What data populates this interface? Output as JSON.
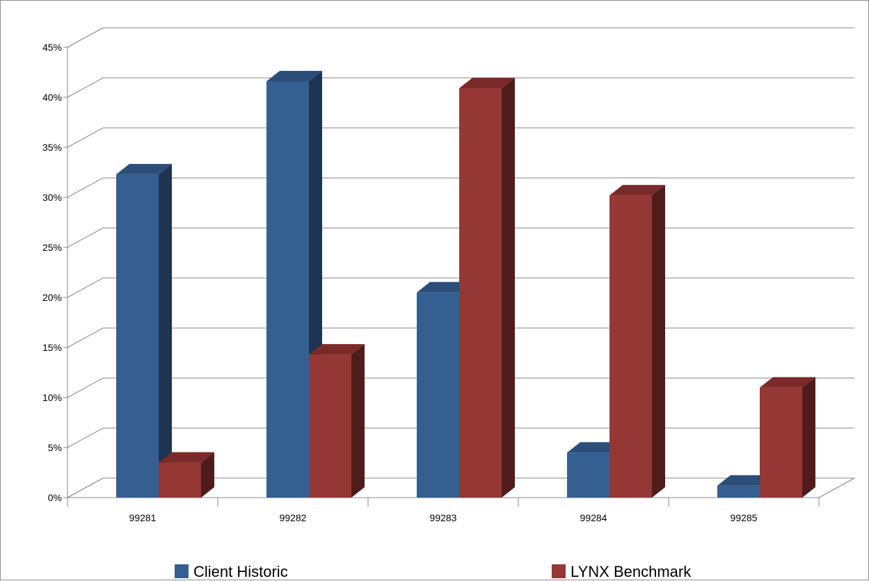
{
  "chart_data": {
    "type": "bar",
    "title": "",
    "xlabel": "",
    "ylabel": "",
    "categories": [
      "99281",
      "99282",
      "99283",
      "99284",
      "99285"
    ],
    "series": [
      {
        "name": "Client Historic",
        "values": [
          32.3,
          41.6,
          20.5,
          4.5,
          1.2
        ]
      },
      {
        "name": "LYNX Benchmark",
        "values": [
          3.5,
          14.3,
          40.9,
          30.2,
          11.0
        ]
      }
    ],
    "ylim": [
      0,
      45
    ],
    "yticks": [
      "0%",
      "5%",
      "10%",
      "15%",
      "20%",
      "25%",
      "30%",
      "35%",
      "40%",
      "45%"
    ],
    "grid": true,
    "legend_position": "bottom",
    "style": "3d-clustered-column"
  },
  "colors": {
    "Client Historic": {
      "front": "#365f91",
      "top": "#2b4d78",
      "side": "#1f3352"
    },
    "LYNX Benchmark": {
      "front": "#953735",
      "top": "#7a2a28",
      "side": "#4f1c1b"
    },
    "grid": "#868686",
    "axis": "#868686"
  }
}
